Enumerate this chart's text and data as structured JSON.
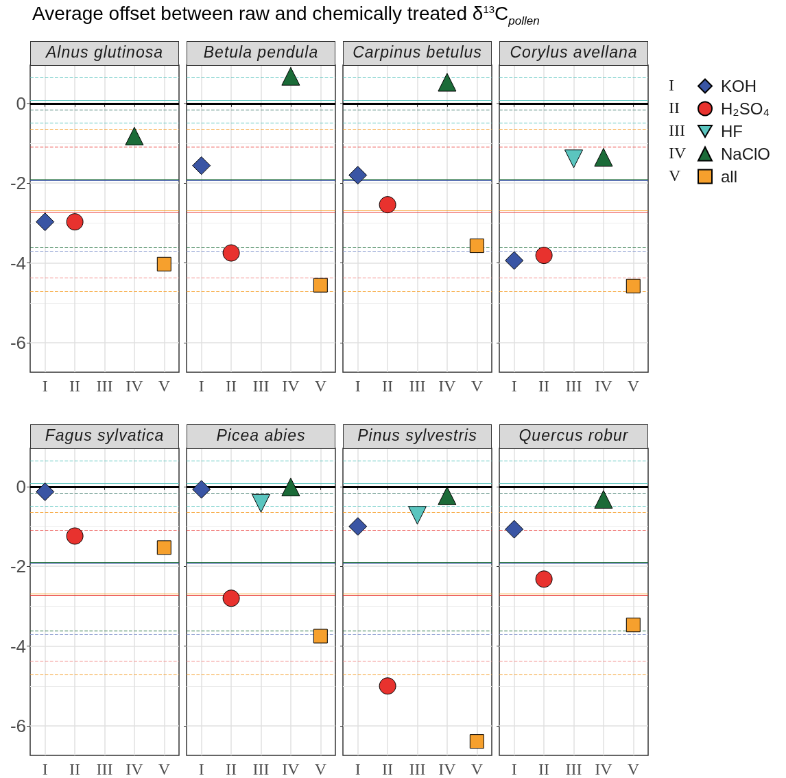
{
  "chart_data": [
    {
      "type": "scatter",
      "title": "Average offset between raw and chemically treated δ$^{13}$C$_{pollen}$",
      "subtitle": "Alnus glutinosa",
      "categories": [
        "I",
        "II",
        "III",
        "IV",
        "V"
      ],
      "ylim": [
        -6.74,
        0.96
      ],
      "yticks": [
        -6,
        -4,
        -2,
        0
      ],
      "grid": true,
      "series": [
        {
          "color": "#3a55a4",
          "marker": "diamond",
          "values": [
            -2.97,
            null,
            null,
            null,
            null
          ]
        },
        {
          "color": "#e8322e",
          "marker": "circle",
          "values": [
            null,
            -2.97,
            null,
            null,
            null
          ]
        },
        {
          "color": "#5bc5bf",
          "marker": "triangle-down",
          "values": [
            null,
            null,
            null,
            null,
            null
          ]
        },
        {
          "color": "#1b6b38",
          "marker": "triangle",
          "values": [
            null,
            null,
            null,
            -0.82,
            null
          ]
        },
        {
          "color": "#f6a02d",
          "marker": "square",
          "values": [
            null,
            null,
            null,
            null,
            -4.03
          ]
        }
      ],
      "ref_lines": [
        {
          "axis": "y",
          "value": 0.65,
          "color": "#5bc5bf",
          "line_style": "dashed"
        },
        {
          "axis": "y",
          "value": 0.08,
          "color": "#5bc5bf",
          "line_style": "solid"
        },
        {
          "axis": "y",
          "value": 0,
          "color": "#000000",
          "line_style": "solid"
        },
        {
          "axis": "y",
          "value": -0.16,
          "color": "#3f7a6c",
          "line_style": "dashed"
        },
        {
          "axis": "y",
          "value": -0.49,
          "color": "#5bc5bf",
          "line_style": "dashed"
        },
        {
          "axis": "y",
          "value": -0.65,
          "color": "#f6a02d",
          "line_style": "dashed"
        },
        {
          "axis": "y",
          "value": -1.09,
          "color": "#e8322e",
          "line_style": "dashed"
        },
        {
          "axis": "y",
          "value": -1.89,
          "color": "#1b6b38",
          "line_style": "solid"
        },
        {
          "axis": "y",
          "value": -1.93,
          "color": "#3a55a4",
          "line_style": "solid"
        },
        {
          "axis": "y",
          "value": -2.69,
          "color": "#f6a02d",
          "line_style": "solid"
        },
        {
          "axis": "y",
          "value": -2.73,
          "color": "#e8322e",
          "line_style": "solid"
        },
        {
          "axis": "y",
          "value": -3.61,
          "color": "#1b6b38",
          "line_style": "dashed"
        },
        {
          "axis": "y",
          "value": -3.71,
          "color": "#8a9bd0",
          "line_style": "dashed"
        },
        {
          "axis": "y",
          "value": -4.38,
          "color": "#f28b89",
          "line_style": "dashed"
        },
        {
          "axis": "y",
          "value": -4.71,
          "color": "#f6a02d",
          "line_style": "dashed"
        }
      ]
    },
    {
      "type": "scatter",
      "title": "Betula pendula",
      "categories": [
        "I",
        "II",
        "III",
        "IV",
        "V"
      ],
      "ylim": [
        -6.74,
        0.96
      ],
      "yticks": [
        -6,
        -4,
        -2,
        0
      ],
      "grid": true,
      "tick_labels": "x",
      "series": [
        {
          "color": "#3a55a4",
          "marker": "diamond",
          "values": [
            -1.56,
            null,
            null,
            null,
            null
          ]
        },
        {
          "color": "#e8322e",
          "marker": "circle",
          "values": [
            null,
            -3.75,
            null,
            null,
            null
          ]
        },
        {
          "color": "#5bc5bf",
          "marker": "triangle-down",
          "values": [
            null,
            null,
            null,
            null,
            null
          ]
        },
        {
          "color": "#1b6b38",
          "marker": "triangle",
          "values": [
            null,
            null,
            null,
            0.68,
            null
          ]
        },
        {
          "color": "#f6a02d",
          "marker": "square",
          "values": [
            null,
            null,
            null,
            null,
            -4.56
          ]
        }
      ],
      "ref_lines": [
        {
          "axis": "y",
          "value": 0.65,
          "color": "#5bc5bf",
          "line_style": "dashed"
        },
        {
          "axis": "y",
          "value": 0.08,
          "color": "#5bc5bf",
          "line_style": "solid"
        },
        {
          "axis": "y",
          "value": 0,
          "color": "#000000",
          "line_style": "solid"
        },
        {
          "axis": "y",
          "value": -0.16,
          "color": "#3f7a6c",
          "line_style": "dashed"
        },
        {
          "axis": "y",
          "value": -0.49,
          "color": "#5bc5bf",
          "line_style": "dashed"
        },
        {
          "axis": "y",
          "value": -0.65,
          "color": "#f6a02d",
          "line_style": "dashed"
        },
        {
          "axis": "y",
          "value": -1.09,
          "color": "#e8322e",
          "line_style": "dashed"
        },
        {
          "axis": "y",
          "value": -1.89,
          "color": "#1b6b38",
          "line_style": "solid"
        },
        {
          "axis": "y",
          "value": -1.93,
          "color": "#3a55a4",
          "line_style": "solid"
        },
        {
          "axis": "y",
          "value": -2.69,
          "color": "#f6a02d",
          "line_style": "solid"
        },
        {
          "axis": "y",
          "value": -2.73,
          "color": "#e8322e",
          "line_style": "solid"
        },
        {
          "axis": "y",
          "value": -3.61,
          "color": "#1b6b38",
          "line_style": "dashed"
        },
        {
          "axis": "y",
          "value": -3.71,
          "color": "#8a9bd0",
          "line_style": "dashed"
        },
        {
          "axis": "y",
          "value": -4.38,
          "color": "#f28b89",
          "line_style": "dashed"
        },
        {
          "axis": "y",
          "value": -4.71,
          "color": "#f6a02d",
          "line_style": "dashed"
        }
      ]
    },
    {
      "type": "scatter",
      "title": "Carpinus betulus",
      "categories": [
        "I",
        "II",
        "III",
        "IV",
        "V"
      ],
      "ylim": [
        -6.74,
        0.96
      ],
      "yticks": [
        -6,
        -4,
        -2,
        0
      ],
      "grid": true,
      "tick_labels": "x",
      "series": [
        {
          "color": "#3a55a4",
          "marker": "diamond",
          "values": [
            -1.8,
            null,
            null,
            null,
            null
          ]
        },
        {
          "color": "#e8322e",
          "marker": "circle",
          "values": [
            null,
            -2.54,
            null,
            null,
            null
          ]
        },
        {
          "color": "#5bc5bf",
          "marker": "triangle-down",
          "values": [
            null,
            null,
            null,
            null,
            null
          ]
        },
        {
          "color": "#1b6b38",
          "marker": "triangle",
          "values": [
            null,
            null,
            null,
            0.53,
            null
          ]
        },
        {
          "color": "#f6a02d",
          "marker": "square",
          "values": [
            null,
            null,
            null,
            null,
            -3.57
          ]
        }
      ],
      "ref_lines": [
        {
          "axis": "y",
          "value": 0.65,
          "color": "#5bc5bf",
          "line_style": "dashed"
        },
        {
          "axis": "y",
          "value": 0.08,
          "color": "#5bc5bf",
          "line_style": "solid"
        },
        {
          "axis": "y",
          "value": 0,
          "color": "#000000",
          "line_style": "solid"
        },
        {
          "axis": "y",
          "value": -0.16,
          "color": "#3f7a6c",
          "line_style": "dashed"
        },
        {
          "axis": "y",
          "value": -0.49,
          "color": "#5bc5bf",
          "line_style": "dashed"
        },
        {
          "axis": "y",
          "value": -0.65,
          "color": "#f6a02d",
          "line_style": "dashed"
        },
        {
          "axis": "y",
          "value": -1.09,
          "color": "#e8322e",
          "line_style": "dashed"
        },
        {
          "axis": "y",
          "value": -1.89,
          "color": "#1b6b38",
          "line_style": "solid"
        },
        {
          "axis": "y",
          "value": -1.93,
          "color": "#3a55a4",
          "line_style": "solid"
        },
        {
          "axis": "y",
          "value": -2.69,
          "color": "#f6a02d",
          "line_style": "solid"
        },
        {
          "axis": "y",
          "value": -2.73,
          "color": "#e8322e",
          "line_style": "solid"
        },
        {
          "axis": "y",
          "value": -3.61,
          "color": "#1b6b38",
          "line_style": "dashed"
        },
        {
          "axis": "y",
          "value": -3.71,
          "color": "#8a9bd0",
          "line_style": "dashed"
        },
        {
          "axis": "y",
          "value": -4.38,
          "color": "#f28b89",
          "line_style": "dashed"
        },
        {
          "axis": "y",
          "value": -4.71,
          "color": "#f6a02d",
          "line_style": "dashed"
        }
      ]
    },
    {
      "type": "scatter",
      "title": "Corylus avellana",
      "categories": [
        "I",
        "II",
        "III",
        "IV",
        "V"
      ],
      "ylim": [
        -6.74,
        0.96
      ],
      "yticks": [
        -6,
        -4,
        -2,
        0
      ],
      "grid": true,
      "tick_labels": "x",
      "legend": "right",
      "series": [
        {
          "name": "KOH",
          "color": "#3a55a4",
          "marker": "diamond",
          "values": [
            -3.94,
            null,
            null,
            null,
            null
          ]
        },
        {
          "name": "H₂SO₄",
          "color": "#e8322e",
          "marker": "circle",
          "values": [
            null,
            -3.81,
            null,
            null,
            null
          ]
        },
        {
          "name": "HF",
          "color": "#5bc5bf",
          "marker": "triangle-down",
          "values": [
            null,
            null,
            -1.39,
            null,
            null
          ]
        },
        {
          "name": "NaClO",
          "color": "#1b6b38",
          "marker": "triangle",
          "values": [
            null,
            null,
            null,
            -1.35,
            null
          ]
        },
        {
          "name": "all",
          "color": "#f6a02d",
          "marker": "square",
          "values": [
            null,
            null,
            null,
            null,
            -4.58
          ]
        }
      ],
      "ref_lines": [
        {
          "axis": "y",
          "value": 0.65,
          "color": "#5bc5bf",
          "line_style": "dashed"
        },
        {
          "axis": "y",
          "value": 0.08,
          "color": "#5bc5bf",
          "line_style": "solid"
        },
        {
          "axis": "y",
          "value": 0,
          "color": "#000000",
          "line_style": "solid"
        },
        {
          "axis": "y",
          "value": -0.16,
          "color": "#3f7a6c",
          "line_style": "dashed"
        },
        {
          "axis": "y",
          "value": -0.49,
          "color": "#5bc5bf",
          "line_style": "dashed"
        },
        {
          "axis": "y",
          "value": -0.65,
          "color": "#f6a02d",
          "line_style": "dashed"
        },
        {
          "axis": "y",
          "value": -1.09,
          "color": "#e8322e",
          "line_style": "dashed"
        },
        {
          "axis": "y",
          "value": -1.89,
          "color": "#1b6b38",
          "line_style": "solid"
        },
        {
          "axis": "y",
          "value": -1.93,
          "color": "#3a55a4",
          "line_style": "solid"
        },
        {
          "axis": "y",
          "value": -2.69,
          "color": "#f6a02d",
          "line_style": "solid"
        },
        {
          "axis": "y",
          "value": -2.73,
          "color": "#e8322e",
          "line_style": "solid"
        },
        {
          "axis": "y",
          "value": -3.61,
          "color": "#1b6b38",
          "line_style": "dashed"
        },
        {
          "axis": "y",
          "value": -3.71,
          "color": "#8a9bd0",
          "line_style": "dashed"
        },
        {
          "axis": "y",
          "value": -4.38,
          "color": "#f28b89",
          "line_style": "dashed"
        },
        {
          "axis": "y",
          "value": -4.71,
          "color": "#f6a02d",
          "line_style": "dashed"
        }
      ]
    },
    {
      "type": "scatter",
      "title": "Fagus sylvatica",
      "categories": [
        "I",
        "II",
        "III",
        "IV",
        "V"
      ],
      "ylim": [
        -6.74,
        0.96
      ],
      "yticks": [
        -6,
        -4,
        -2,
        0
      ],
      "grid": true,
      "series": [
        {
          "color": "#3a55a4",
          "marker": "diamond",
          "values": [
            -0.13,
            null,
            null,
            null,
            null
          ]
        },
        {
          "color": "#e8322e",
          "marker": "circle",
          "values": [
            null,
            -1.24,
            null,
            null,
            null
          ]
        },
        {
          "color": "#5bc5bf",
          "marker": "triangle-down",
          "values": [
            null,
            null,
            null,
            null,
            null
          ]
        },
        {
          "color": "#1b6b38",
          "marker": "triangle",
          "values": [
            null,
            null,
            null,
            null,
            null
          ]
        },
        {
          "color": "#f6a02d",
          "marker": "square",
          "values": [
            null,
            null,
            null,
            null,
            -1.53
          ]
        }
      ],
      "ref_lines": [
        {
          "axis": "y",
          "value": 0.65,
          "color": "#5bc5bf",
          "line_style": "dashed"
        },
        {
          "axis": "y",
          "value": 0.08,
          "color": "#5bc5bf",
          "line_style": "solid"
        },
        {
          "axis": "y",
          "value": 0,
          "color": "#000000",
          "line_style": "solid"
        },
        {
          "axis": "y",
          "value": -0.16,
          "color": "#3f7a6c",
          "line_style": "dashed"
        },
        {
          "axis": "y",
          "value": -0.49,
          "color": "#5bc5bf",
          "line_style": "dashed"
        },
        {
          "axis": "y",
          "value": -0.65,
          "color": "#f6a02d",
          "line_style": "dashed"
        },
        {
          "axis": "y",
          "value": -1.09,
          "color": "#e8322e",
          "line_style": "dashed"
        },
        {
          "axis": "y",
          "value": -1.89,
          "color": "#1b6b38",
          "line_style": "solid"
        },
        {
          "axis": "y",
          "value": -1.93,
          "color": "#3a55a4",
          "line_style": "solid"
        },
        {
          "axis": "y",
          "value": -2.69,
          "color": "#f6a02d",
          "line_style": "solid"
        },
        {
          "axis": "y",
          "value": -2.73,
          "color": "#e8322e",
          "line_style": "solid"
        },
        {
          "axis": "y",
          "value": -3.61,
          "color": "#1b6b38",
          "line_style": "dashed"
        },
        {
          "axis": "y",
          "value": -3.71,
          "color": "#8a9bd0",
          "line_style": "dashed"
        },
        {
          "axis": "y",
          "value": -4.38,
          "color": "#f28b89",
          "line_style": "dashed"
        },
        {
          "axis": "y",
          "value": -4.71,
          "color": "#f6a02d",
          "line_style": "dashed"
        }
      ]
    },
    {
      "type": "scatter",
      "title": "Picea abies",
      "categories": [
        "I",
        "II",
        "III",
        "IV",
        "V"
      ],
      "ylim": [
        -6.74,
        0.96
      ],
      "yticks": [
        -6,
        -4,
        -2,
        0
      ],
      "grid": true,
      "tick_labels": "x",
      "series": [
        {
          "color": "#3a55a4",
          "marker": "diamond",
          "values": [
            -0.07,
            null,
            null,
            null,
            null
          ]
        },
        {
          "color": "#e8322e",
          "marker": "circle",
          "values": [
            null,
            -2.8,
            null,
            null,
            null
          ]
        },
        {
          "color": "#5bc5bf",
          "marker": "triangle-down",
          "values": [
            null,
            null,
            -0.42,
            null,
            null
          ]
        },
        {
          "color": "#1b6b38",
          "marker": "triangle",
          "values": [
            null,
            null,
            null,
            -0.01,
            null
          ]
        },
        {
          "color": "#f6a02d",
          "marker": "square",
          "values": [
            null,
            null,
            null,
            null,
            -3.75
          ]
        }
      ],
      "ref_lines": [
        {
          "axis": "y",
          "value": 0.65,
          "color": "#5bc5bf",
          "line_style": "dashed"
        },
        {
          "axis": "y",
          "value": 0.08,
          "color": "#5bc5bf",
          "line_style": "solid"
        },
        {
          "axis": "y",
          "value": 0,
          "color": "#000000",
          "line_style": "solid"
        },
        {
          "axis": "y",
          "value": -0.16,
          "color": "#3f7a6c",
          "line_style": "dashed"
        },
        {
          "axis": "y",
          "value": -0.49,
          "color": "#5bc5bf",
          "line_style": "dashed"
        },
        {
          "axis": "y",
          "value": -0.65,
          "color": "#f6a02d",
          "line_style": "dashed"
        },
        {
          "axis": "y",
          "value": -1.09,
          "color": "#e8322e",
          "line_style": "dashed"
        },
        {
          "axis": "y",
          "value": -1.89,
          "color": "#1b6b38",
          "line_style": "solid"
        },
        {
          "axis": "y",
          "value": -1.93,
          "color": "#3a55a4",
          "line_style": "solid"
        },
        {
          "axis": "y",
          "value": -2.69,
          "color": "#f6a02d",
          "line_style": "solid"
        },
        {
          "axis": "y",
          "value": -2.73,
          "color": "#e8322e",
          "line_style": "solid"
        },
        {
          "axis": "y",
          "value": -3.61,
          "color": "#1b6b38",
          "line_style": "dashed"
        },
        {
          "axis": "y",
          "value": -3.71,
          "color": "#8a9bd0",
          "line_style": "dashed"
        },
        {
          "axis": "y",
          "value": -4.38,
          "color": "#f28b89",
          "line_style": "dashed"
        },
        {
          "axis": "y",
          "value": -4.71,
          "color": "#f6a02d",
          "line_style": "dashed"
        }
      ]
    },
    {
      "type": "scatter",
      "title": "Pinus sylvestris",
      "categories": [
        "I",
        "II",
        "III",
        "IV",
        "V"
      ],
      "ylim": [
        -6.74,
        0.96
      ],
      "yticks": [
        -6,
        -4,
        -2,
        0
      ],
      "grid": true,
      "tick_labels": "x",
      "series": [
        {
          "color": "#3a55a4",
          "marker": "diamond",
          "values": [
            -1.0,
            null,
            null,
            null,
            null
          ]
        },
        {
          "color": "#e8322e",
          "marker": "circle",
          "values": [
            null,
            -5.0,
            null,
            null,
            null
          ]
        },
        {
          "color": "#5bc5bf",
          "marker": "triangle-down",
          "values": [
            null,
            null,
            -0.72,
            null,
            null
          ]
        },
        {
          "color": "#1b6b38",
          "marker": "triangle",
          "values": [
            null,
            null,
            null,
            -0.23,
            null
          ]
        },
        {
          "color": "#f6a02d",
          "marker": "square",
          "values": [
            null,
            null,
            null,
            null,
            -6.39
          ]
        }
      ],
      "ref_lines": [
        {
          "axis": "y",
          "value": 0.65,
          "color": "#5bc5bf",
          "line_style": "dashed"
        },
        {
          "axis": "y",
          "value": 0.08,
          "color": "#5bc5bf",
          "line_style": "solid"
        },
        {
          "axis": "y",
          "value": 0,
          "color": "#000000",
          "line_style": "solid"
        },
        {
          "axis": "y",
          "value": -0.16,
          "color": "#3f7a6c",
          "line_style": "dashed"
        },
        {
          "axis": "y",
          "value": -0.49,
          "color": "#5bc5bf",
          "line_style": "dashed"
        },
        {
          "axis": "y",
          "value": -0.65,
          "color": "#f6a02d",
          "line_style": "dashed"
        },
        {
          "axis": "y",
          "value": -1.09,
          "color": "#e8322e",
          "line_style": "dashed"
        },
        {
          "axis": "y",
          "value": -1.89,
          "color": "#1b6b38",
          "line_style": "solid"
        },
        {
          "axis": "y",
          "value": -1.93,
          "color": "#3a55a4",
          "line_style": "solid"
        },
        {
          "axis": "y",
          "value": -2.69,
          "color": "#f6a02d",
          "line_style": "solid"
        },
        {
          "axis": "y",
          "value": -2.73,
          "color": "#e8322e",
          "line_style": "solid"
        },
        {
          "axis": "y",
          "value": -3.61,
          "color": "#1b6b38",
          "line_style": "dashed"
        },
        {
          "axis": "y",
          "value": -3.71,
          "color": "#8a9bd0",
          "line_style": "dashed"
        },
        {
          "axis": "y",
          "value": -4.38,
          "color": "#f28b89",
          "line_style": "dashed"
        },
        {
          "axis": "y",
          "value": -4.71,
          "color": "#f6a02d",
          "line_style": "dashed"
        }
      ]
    },
    {
      "type": "scatter",
      "title": "Quercus robur",
      "categories": [
        "I",
        "II",
        "III",
        "IV",
        "V"
      ],
      "ylim": [
        -6.74,
        0.96
      ],
      "yticks": [
        -6,
        -4,
        -2,
        0
      ],
      "grid": true,
      "tick_labels": "x",
      "series": [
        {
          "color": "#3a55a4",
          "marker": "diamond",
          "values": [
            -1.07,
            null,
            null,
            null,
            null
          ]
        },
        {
          "color": "#e8322e",
          "marker": "circle",
          "values": [
            null,
            -2.32,
            null,
            null,
            null
          ]
        },
        {
          "color": "#5bc5bf",
          "marker": "triangle-down",
          "values": [
            null,
            null,
            null,
            null,
            null
          ]
        },
        {
          "color": "#1b6b38",
          "marker": "triangle",
          "values": [
            null,
            null,
            null,
            -0.32,
            null
          ]
        },
        {
          "color": "#f6a02d",
          "marker": "square",
          "values": [
            null,
            null,
            null,
            null,
            -3.47
          ]
        }
      ],
      "ref_lines": [
        {
          "axis": "y",
          "value": 0.65,
          "color": "#5bc5bf",
          "line_style": "dashed"
        },
        {
          "axis": "y",
          "value": 0.08,
          "color": "#5bc5bf",
          "line_style": "solid"
        },
        {
          "axis": "y",
          "value": 0,
          "color": "#000000",
          "line_style": "solid"
        },
        {
          "axis": "y",
          "value": -0.16,
          "color": "#3f7a6c",
          "line_style": "dashed"
        },
        {
          "axis": "y",
          "value": -0.49,
          "color": "#5bc5bf",
          "line_style": "dashed"
        },
        {
          "axis": "y",
          "value": -0.65,
          "color": "#f6a02d",
          "line_style": "dashed"
        },
        {
          "axis": "y",
          "value": -1.09,
          "color": "#e8322e",
          "line_style": "dashed"
        },
        {
          "axis": "y",
          "value": -1.89,
          "color": "#1b6b38",
          "line_style": "solid"
        },
        {
          "axis": "y",
          "value": -1.93,
          "color": "#3a55a4",
          "line_style": "solid"
        },
        {
          "axis": "y",
          "value": -2.69,
          "color": "#f6a02d",
          "line_style": "solid"
        },
        {
          "axis": "y",
          "value": -2.73,
          "color": "#e8322e",
          "line_style": "solid"
        },
        {
          "axis": "y",
          "value": -3.61,
          "color": "#1b6b38",
          "line_style": "dashed"
        },
        {
          "axis": "y",
          "value": -3.71,
          "color": "#8a9bd0",
          "line_style": "dashed"
        },
        {
          "axis": "y",
          "value": -4.38,
          "color": "#f28b89",
          "line_style": "dashed"
        },
        {
          "axis": "y",
          "value": -4.71,
          "color": "#f6a02d",
          "line_style": "dashed"
        }
      ]
    }
  ]
}
